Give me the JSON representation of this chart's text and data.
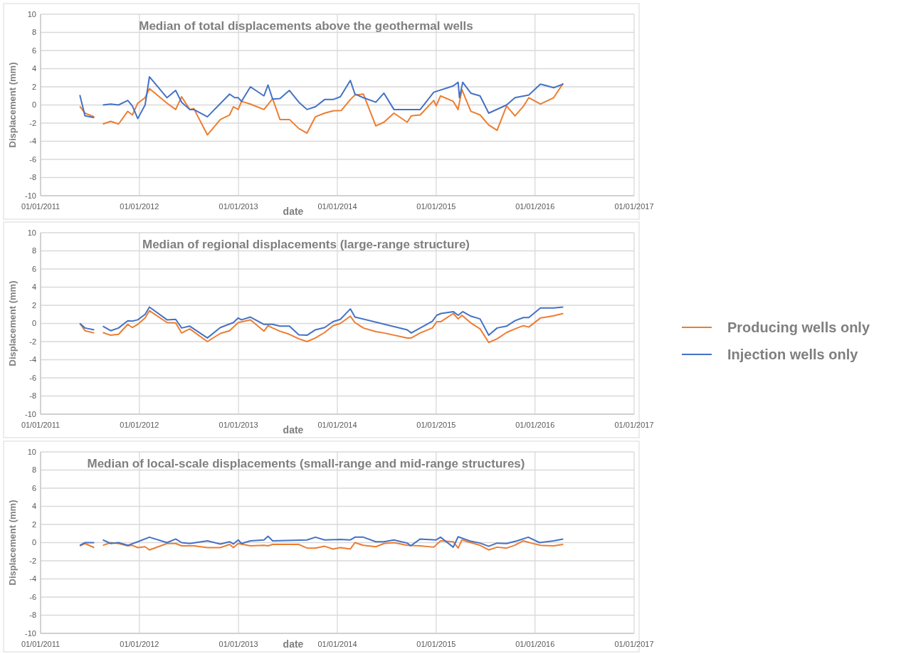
{
  "chart_data": [
    {
      "type": "line",
      "title": "Median of total displacements above the geothermal wells",
      "xlabel": "date",
      "ylabel": "Displacement (mm)",
      "xlim": [
        "2011-01-01",
        "2017-01-01"
      ],
      "xticks": [
        {
          "value": "2011-01-01",
          "label": "01/01/2011"
        },
        {
          "value": "2012-01-01",
          "label": "01/01/2012"
        },
        {
          "value": "2013-01-01",
          "label": "01/01/2013"
        },
        {
          "value": "2014-01-01",
          "label": "01/01/2014"
        },
        {
          "value": "2015-01-01",
          "label": "01/01/2015"
        },
        {
          "value": "2016-01-01",
          "label": "01/01/2016"
        },
        {
          "value": "2017-01-01",
          "label": "01/01/2017"
        }
      ],
      "ylim": [
        -10,
        10
      ],
      "yticks": [
        -10,
        -8,
        -6,
        -4,
        -2,
        0,
        2,
        4,
        6,
        8,
        10
      ],
      "grid": true,
      "legend": false,
      "series": [
        {
          "color": "#ed7d31",
          "x": [
            "2011-05-26",
            "2011-06-14",
            "2011-07-18",
            "2011-08-03",
            "2011-08-19",
            "2011-09-17",
            "2011-10-16",
            "2011-11-19",
            "2011-12-06",
            "2011-12-26",
            "2012-01-22",
            "2012-02-07",
            "2012-04-12",
            "2012-05-14",
            "2012-06-05",
            "2012-07-05",
            "2012-07-20",
            "2012-09-08",
            "2012-10-26",
            "2012-11-29",
            "2012-12-13",
            "2012-12-31",
            "2013-01-12",
            "2013-02-14",
            "2013-04-05",
            "2013-05-07",
            "2013-06-03",
            "2013-07-08",
            "2013-08-12",
            "2013-09-11",
            "2013-10-12",
            "2013-11-15",
            "2013-12-16",
            "2014-01-16",
            "2014-02-18",
            "2014-03-07",
            "2014-04-07",
            "2014-05-23",
            "2014-06-22",
            "2014-07-29",
            "2014-09-16",
            "2014-10-01",
            "2014-11-03",
            "2014-12-23",
            "2015-01-01",
            "2015-01-17",
            "2015-03-05",
            "2015-03-23",
            "2015-04-06",
            "2015-05-09",
            "2015-06-12",
            "2015-07-14",
            "2015-08-14",
            "2015-09-18",
            "2015-10-19",
            "2015-11-19",
            "2015-12-09",
            "2016-01-21",
            "2016-03-10",
            "2016-04-14"
          ],
          "values": [
            -0.15,
            -0.9,
            -1.3,
            null,
            -2.1,
            -1.8,
            -2.1,
            -0.7,
            -1.1,
            0.2,
            0.8,
            1.8,
            0.2,
            -0.5,
            0.9,
            -0.5,
            -0.4,
            -3.3,
            -1.6,
            -1.1,
            -0.2,
            -0.5,
            0.4,
            0.1,
            -0.5,
            0.7,
            -1.6,
            -1.6,
            -2.6,
            -3.1,
            -1.3,
            -0.9,
            -0.65,
            -0.6,
            0.6,
            1.1,
            1.2,
            -2.3,
            -1.9,
            -0.9,
            -1.9,
            -1.2,
            -1.1,
            0.5,
            -0.1,
            1.0,
            0.4,
            -0.5,
            1.7,
            -0.7,
            -1.1,
            -2.2,
            -2.8,
            -0.1,
            -1.2,
            -0.15,
            0.8,
            0.1,
            0.8,
            2.4
          ]
        },
        {
          "color": "#4472c4",
          "x": [
            "2011-05-26",
            "2011-06-14",
            "2011-07-18",
            "2011-08-03",
            "2011-08-19",
            "2011-09-17",
            "2011-10-16",
            "2011-11-19",
            "2011-12-06",
            "2011-12-26",
            "2012-01-22",
            "2012-02-07",
            "2012-04-12",
            "2012-05-14",
            "2012-06-05",
            "2012-07-05",
            "2012-07-20",
            "2012-09-08",
            "2012-11-29",
            "2012-12-18",
            "2012-12-31",
            "2013-01-12",
            "2013-02-14",
            "2013-04-05",
            "2013-04-20",
            "2013-05-07",
            "2013-06-03",
            "2013-07-08",
            "2013-08-12",
            "2013-09-11",
            "2013-10-12",
            "2013-11-15",
            "2013-12-16",
            "2014-01-12",
            "2014-02-18",
            "2014-03-07",
            "2014-04-07",
            "2014-05-23",
            "2014-06-22",
            "2014-07-29",
            "2014-11-03",
            "2014-12-23",
            "2015-03-05",
            "2015-03-23",
            "2015-03-28",
            "2015-04-09",
            "2015-05-09",
            "2015-06-12",
            "2015-07-14",
            "2015-09-18",
            "2015-10-19",
            "2015-12-09",
            "2016-01-21",
            "2016-03-10",
            "2016-04-14"
          ],
          "values": [
            1.1,
            -1.2,
            -1.4,
            null,
            0,
            0.1,
            0,
            0.5,
            -0.1,
            -1.5,
            0,
            3.1,
            0.8,
            1.6,
            0.3,
            -0.5,
            -0.5,
            -1.3,
            1.2,
            0.8,
            0.8,
            0.4,
            2.0,
            1.0,
            2.2,
            0.65,
            0.7,
            1.6,
            0.3,
            -0.5,
            -0.2,
            0.6,
            0.6,
            0.9,
            2.7,
            1.2,
            0.8,
            0.3,
            1.3,
            -0.5,
            -0.5,
            1.4,
            2.1,
            2.5,
            0.8,
            2.5,
            1.3,
            1.0,
            -0.9,
            0,
            0.8,
            1.1,
            2.3,
            1.9,
            2.3
          ]
        }
      ]
    },
    {
      "type": "line",
      "title": "Median of regional displacements (large-range structure)",
      "xlabel": "date",
      "ylabel": "Displacement (mm)",
      "xlim": [
        "2011-01-01",
        "2017-01-01"
      ],
      "xticks": [
        {
          "value": "2011-01-01",
          "label": "01/01/2011"
        },
        {
          "value": "2012-01-01",
          "label": "01/01/2012"
        },
        {
          "value": "2013-01-01",
          "label": "01/01/2013"
        },
        {
          "value": "2014-01-01",
          "label": "01/01/2014"
        },
        {
          "value": "2015-01-01",
          "label": "01/01/2015"
        },
        {
          "value": "2016-01-01",
          "label": "01/01/2016"
        },
        {
          "value": "2017-01-01",
          "label": "01/01/2017"
        }
      ],
      "ylim": [
        -10,
        10
      ],
      "yticks": [
        -10,
        -8,
        -6,
        -4,
        -2,
        0,
        2,
        4,
        6,
        8,
        10
      ],
      "grid": true,
      "legend": "right",
      "series": [
        {
          "name": "Producing wells only",
          "color": "#ed7d31",
          "x": [
            "2011-05-26",
            "2011-06-14",
            "2011-07-18",
            "2011-08-03",
            "2011-08-19",
            "2011-09-17",
            "2011-10-16",
            "2011-11-19",
            "2011-12-06",
            "2011-12-26",
            "2012-01-22",
            "2012-02-07",
            "2012-04-12",
            "2012-05-14",
            "2012-06-05",
            "2012-07-05",
            "2012-09-08",
            "2012-10-26",
            "2012-11-29",
            "2012-12-31",
            "2013-02-14",
            "2013-04-05",
            "2013-04-20",
            "2013-05-07",
            "2013-06-03",
            "2013-07-08",
            "2013-08-12",
            "2013-09-11",
            "2013-10-12",
            "2013-11-15",
            "2013-12-16",
            "2014-01-12",
            "2014-02-18",
            "2014-03-07",
            "2014-04-07",
            "2014-05-23",
            "2014-06-22",
            "2014-09-16",
            "2014-10-01",
            "2014-11-03",
            "2014-12-18",
            "2015-01-03",
            "2015-01-19",
            "2015-03-05",
            "2015-03-23",
            "2015-04-06",
            "2015-05-09",
            "2015-06-12",
            "2015-07-14",
            "2015-08-14",
            "2015-09-18",
            "2015-10-19",
            "2015-11-19",
            "2015-12-09",
            "2016-01-21",
            "2016-03-10",
            "2016-04-14"
          ],
          "values": [
            0,
            -0.8,
            -1.05,
            null,
            -1.0,
            -1.3,
            -1.2,
            -0.1,
            -0.45,
            -0.1,
            0.6,
            1.4,
            0.1,
            0.05,
            -1.05,
            -0.6,
            -2.0,
            -1.1,
            -0.8,
            0.1,
            0.4,
            -0.85,
            -0.25,
            -0.5,
            -0.85,
            -1.2,
            -1.7,
            -2.0,
            -1.6,
            -1.0,
            -0.25,
            0,
            0.8,
            0.1,
            -0.5,
            -0.9,
            -1.05,
            -1.6,
            -1.6,
            -1.05,
            -0.5,
            0.2,
            0.2,
            1.1,
            0.5,
            0.9,
            0.05,
            -0.6,
            -2.1,
            -1.7,
            -1.0,
            -0.6,
            -0.25,
            -0.4,
            0.6,
            0.85,
            1.1
          ]
        },
        {
          "name": "Injection wells only",
          "color": "#4472c4",
          "x": [
            "2011-05-26",
            "2011-06-14",
            "2011-07-18",
            "2011-08-03",
            "2011-08-19",
            "2011-09-17",
            "2011-10-16",
            "2011-11-19",
            "2011-12-06",
            "2011-12-26",
            "2012-01-22",
            "2012-02-07",
            "2012-04-12",
            "2012-05-14",
            "2012-06-05",
            "2012-07-05",
            "2012-09-08",
            "2012-10-26",
            "2012-12-13",
            "2012-12-31",
            "2013-01-12",
            "2013-02-14",
            "2013-04-05",
            "2013-05-07",
            "2013-06-03",
            "2013-07-08",
            "2013-08-12",
            "2013-09-11",
            "2013-10-12",
            "2013-11-15",
            "2013-12-16",
            "2014-01-12",
            "2014-02-18",
            "2014-03-07",
            "2014-09-16",
            "2014-10-01",
            "2014-12-18",
            "2015-01-03",
            "2015-01-19",
            "2015-03-05",
            "2015-03-23",
            "2015-04-09",
            "2015-05-09",
            "2015-06-12",
            "2015-07-14",
            "2015-08-14",
            "2015-09-18",
            "2015-10-19",
            "2015-11-19",
            "2015-12-09",
            "2016-01-21",
            "2016-03-10",
            "2016-04-14"
          ],
          "values": [
            0,
            -0.5,
            -0.7,
            null,
            -0.3,
            -0.8,
            -0.5,
            0.3,
            0.25,
            0.4,
            1.0,
            1.8,
            0.4,
            0.45,
            -0.5,
            -0.3,
            -1.6,
            -0.45,
            0.1,
            0.6,
            0.4,
            0.7,
            -0.1,
            -0.1,
            -0.3,
            -0.3,
            -1.25,
            -1.3,
            -0.7,
            -0.45,
            0.2,
            0.45,
            1.6,
            0.7,
            -0.7,
            -1.05,
            0.25,
            0.9,
            1.1,
            1.3,
            0.9,
            1.3,
            0.8,
            0.5,
            -1.3,
            -0.5,
            -0.3,
            0.3,
            0.65,
            0.65,
            1.7,
            1.7,
            1.8
          ]
        }
      ]
    },
    {
      "type": "line",
      "title": "Median of local-scale displacements (small-range and mid-range structures)",
      "xlabel": "date",
      "ylabel": "Displacement (mm)",
      "xlim": [
        "2011-01-01",
        "2017-01-01"
      ],
      "xticks": [
        {
          "value": "2011-01-01",
          "label": "01/01/2011"
        },
        {
          "value": "2012-01-01",
          "label": "01/01/2012"
        },
        {
          "value": "2013-01-01",
          "label": "01/01/2013"
        },
        {
          "value": "2014-01-01",
          "label": "01/01/2014"
        },
        {
          "value": "2015-01-01",
          "label": "01/01/2015"
        },
        {
          "value": "2016-01-01",
          "label": "01/01/2016"
        },
        {
          "value": "2017-01-01",
          "label": "01/01/2017"
        }
      ],
      "ylim": [
        -10,
        10
      ],
      "yticks": [
        -10,
        -8,
        -6,
        -4,
        -2,
        0,
        2,
        4,
        6,
        8,
        10
      ],
      "grid": true,
      "legend": false,
      "series": [
        {
          "color": "#ed7d31",
          "x": [
            "2011-05-26",
            "2011-06-14",
            "2011-07-18",
            "2011-08-03",
            "2011-08-19",
            "2011-09-17",
            "2011-10-16",
            "2011-11-19",
            "2011-12-06",
            "2011-12-26",
            "2012-01-22",
            "2012-02-07",
            "2012-04-12",
            "2012-05-14",
            "2012-06-05",
            "2012-07-20",
            "2012-09-08",
            "2012-10-26",
            "2012-11-29",
            "2012-12-13",
            "2012-12-31",
            "2013-02-14",
            "2013-04-05",
            "2013-04-20",
            "2013-05-07",
            "2013-08-12",
            "2013-09-11",
            "2013-10-12",
            "2013-11-15",
            "2013-12-16",
            "2014-01-12",
            "2014-02-18",
            "2014-03-07",
            "2014-04-07",
            "2014-05-23",
            "2014-06-22",
            "2014-07-29",
            "2014-09-16",
            "2014-11-03",
            "2014-12-23",
            "2015-01-17",
            "2015-03-05",
            "2015-03-23",
            "2015-04-06",
            "2015-05-09",
            "2015-06-12",
            "2015-07-14",
            "2015-08-14",
            "2015-09-18",
            "2015-10-17",
            "2015-11-19",
            "2015-12-18",
            "2016-01-21",
            "2016-03-10",
            "2016-04-14"
          ],
          "values": [
            -0.35,
            -0.1,
            -0.55,
            null,
            -0.3,
            0,
            -0.1,
            -0.35,
            -0.3,
            -0.55,
            -0.45,
            -0.8,
            -0.1,
            -0.1,
            -0.35,
            -0.35,
            -0.55,
            -0.55,
            -0.2,
            -0.55,
            -0.1,
            -0.35,
            -0.3,
            -0.35,
            -0.2,
            -0.2,
            -0.6,
            -0.6,
            -0.4,
            -0.7,
            -0.55,
            -0.7,
            0,
            -0.3,
            -0.45,
            -0.1,
            0,
            -0.3,
            -0.35,
            -0.5,
            0.2,
            0.1,
            -0.6,
            0.3,
            0,
            -0.3,
            -0.8,
            -0.5,
            -0.6,
            -0.3,
            0.2,
            -0.05,
            -0.3,
            -0.35,
            -0.2
          ]
        },
        {
          "color": "#4472c4",
          "x": [
            "2011-05-26",
            "2011-06-14",
            "2011-07-18",
            "2011-08-03",
            "2011-08-19",
            "2011-09-17",
            "2011-10-16",
            "2011-11-19",
            "2011-12-26",
            "2012-02-07",
            "2012-04-12",
            "2012-05-14",
            "2012-06-05",
            "2012-07-05",
            "2012-09-08",
            "2012-10-26",
            "2012-11-29",
            "2012-12-13",
            "2012-12-31",
            "2013-01-12",
            "2013-02-14",
            "2013-04-05",
            "2013-04-20",
            "2013-05-07",
            "2013-09-11",
            "2013-10-12",
            "2013-11-15",
            "2014-01-12",
            "2014-02-18",
            "2014-03-07",
            "2014-04-07",
            "2014-05-23",
            "2014-06-22",
            "2014-07-29",
            "2014-09-16",
            "2014-09-29",
            "2014-11-03",
            "2015-01-01",
            "2015-01-17",
            "2015-03-05",
            "2015-03-23",
            "2015-05-09",
            "2015-06-12",
            "2015-07-14",
            "2015-08-14",
            "2015-09-18",
            "2015-10-27",
            "2015-12-07",
            "2016-01-18",
            "2016-03-10",
            "2016-04-14"
          ],
          "values": [
            -0.3,
            0,
            0,
            null,
            0.3,
            -0.1,
            0,
            -0.3,
            0.1,
            0.6,
            0,
            0.4,
            0,
            -0.1,
            0.2,
            -0.15,
            0.1,
            -0.15,
            0.3,
            -0.1,
            0.2,
            0.3,
            0.7,
            0.2,
            0.3,
            0.6,
            0.3,
            0.35,
            0.3,
            0.6,
            0.6,
            0.1,
            0.1,
            0.3,
            -0.05,
            -0.35,
            0.4,
            0.3,
            0.6,
            -0.5,
            0.65,
            0.15,
            -0.05,
            -0.4,
            -0.05,
            -0.1,
            0.2,
            0.6,
            0,
            0.2,
            0.4
          ]
        }
      ]
    }
  ]
}
